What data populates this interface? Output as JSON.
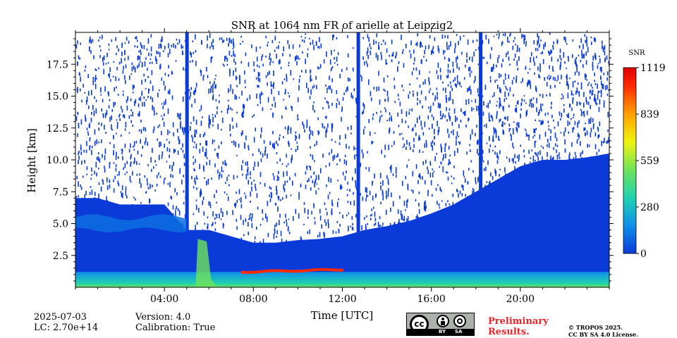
{
  "chart_data": {
    "type": "heatmap",
    "title": "SNR at 1064 nm FR of arielle at Leipzig2",
    "xlabel": "Time [UTC]",
    "ylabel": "Height [km]",
    "xlim": [
      0,
      24
    ],
    "ylim": [
      0,
      20
    ],
    "x_ticks": [
      4,
      8,
      12,
      16,
      20
    ],
    "x_tick_labels": [
      "04:00",
      "08:00",
      "12:00",
      "16:00",
      "20:00"
    ],
    "y_ticks": [
      2.5,
      5.0,
      7.5,
      10.0,
      12.5,
      15.0,
      17.5
    ],
    "y_tick_labels": [
      "2.5",
      "5.0",
      "7.5",
      "10.0",
      "12.5",
      "15.0",
      "17.5"
    ],
    "colorbar": {
      "label": "SNR",
      "range": [
        0,
        1119
      ],
      "ticks": [
        0,
        280,
        559,
        839,
        1119
      ],
      "tick_labels": [
        "0",
        "280",
        "559",
        "839",
        "1119"
      ],
      "colors": [
        "#0a3ad8",
        "#0f8fea",
        "#21d2b0",
        "#6fe35a",
        "#f0f20f",
        "#ffa200",
        "#ff2a00",
        "#e00000"
      ]
    },
    "features": {
      "background_noise_top_km": [
        7.0,
        7.0,
        6.5,
        6.5,
        6.5,
        4.5,
        4.5,
        4.0,
        3.5,
        3.5,
        3.7,
        3.8,
        4.0,
        4.5,
        4.8,
        5.2,
        5.8,
        6.5,
        7.5,
        8.5,
        9.5,
        10.0,
        10.0,
        10.2,
        10.5
      ],
      "cloud_layer": {
        "start_h": 7.5,
        "end_h": 12.2,
        "height_km": [
          1.2,
          1.4
        ],
        "snr": 1000
      },
      "lower_aerosol_band_km": [
        4.5,
        5.5
      ],
      "signal_gaps_h": [
        5.0,
        12.7,
        18.2
      ]
    }
  },
  "info": {
    "date": "2025-07-03",
    "lc": "LC: 2.70e+14",
    "version": "Version: 4.0",
    "calibration": "Calibration: True"
  },
  "license": {
    "cc_icon_text": "cc",
    "by_label": "BY",
    "sa_label": "SA",
    "preliminary_line1": "Preliminary",
    "preliminary_line2": "Results.",
    "copyright_line1": "© TROPOS 2025.",
    "copyright_line2": "CC BY SA 4.0 License."
  }
}
